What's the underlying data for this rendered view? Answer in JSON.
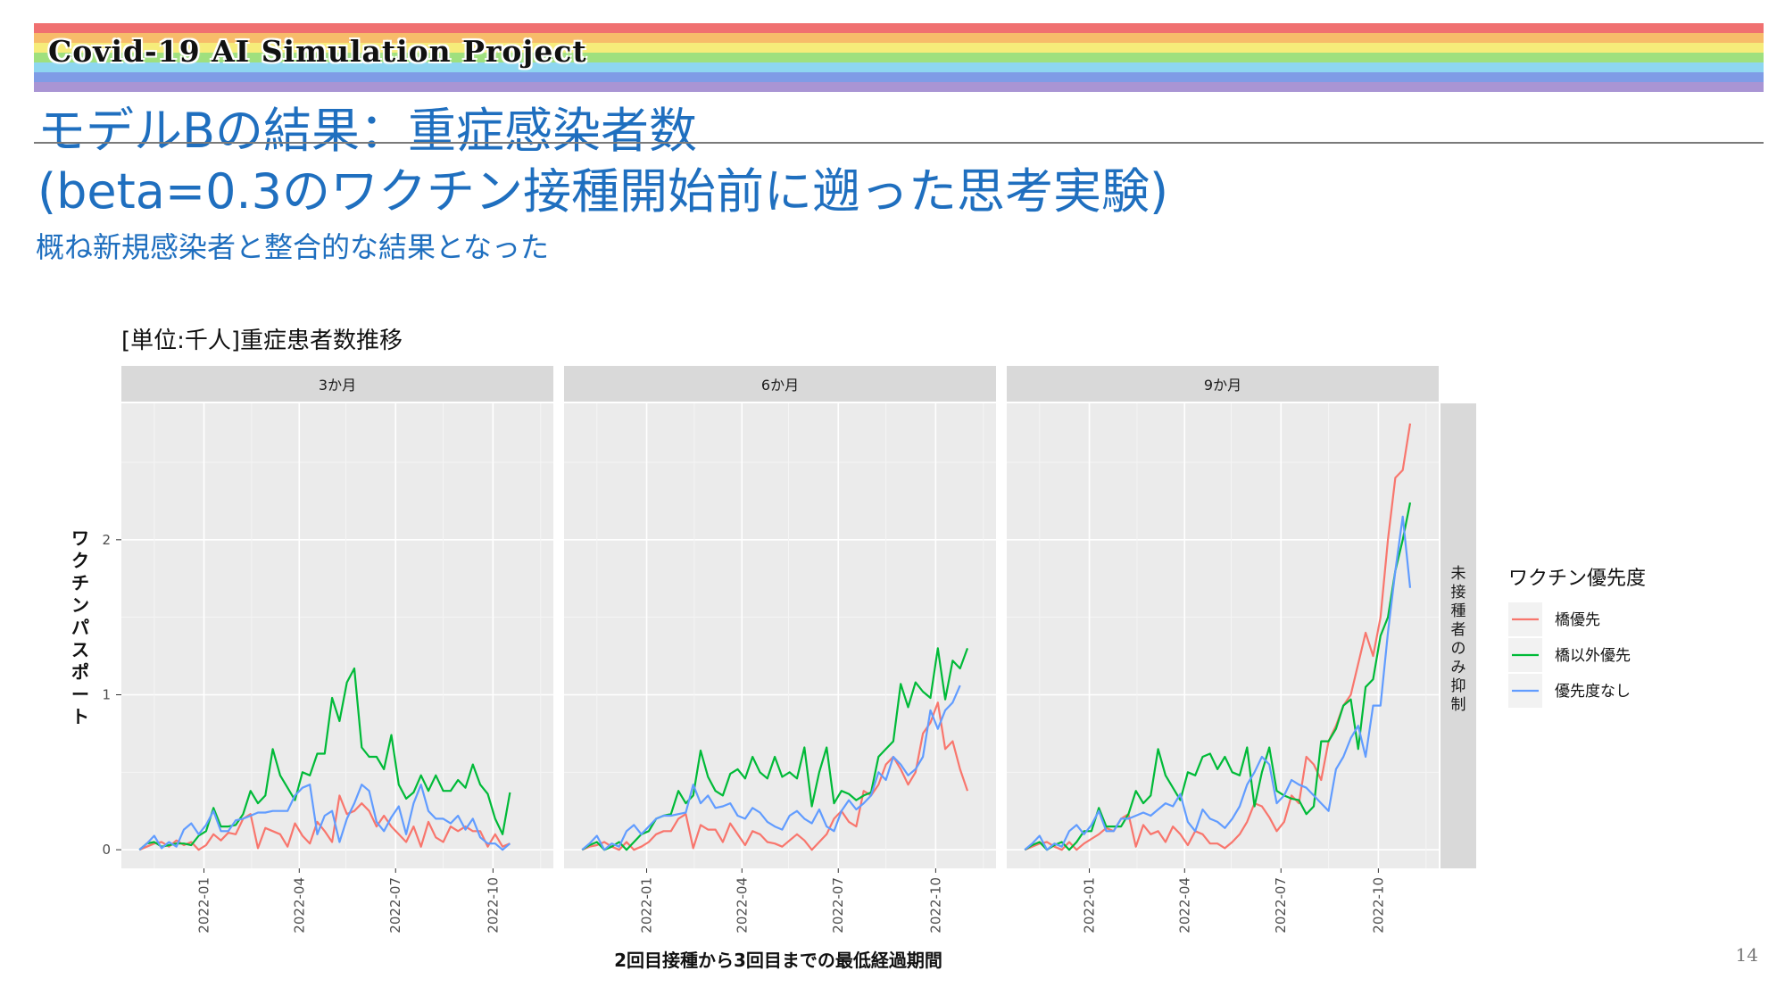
{
  "header": {
    "banner": "Covid-19 AI Simulation Project",
    "rainbow": [
      "#f07070",
      "#f7bc6a",
      "#f6ec7a",
      "#9fe07e",
      "#8ed6f0",
      "#7f9ce6",
      "#a995d4"
    ]
  },
  "title": {
    "line1": "モデルBの結果：重症感染者数",
    "line2": "(beta=0.3のワクチン接種開始前に遡った思考実験)"
  },
  "subtitle": "概ね新規感染者と整合的な結果となった",
  "page_number": "14",
  "chart_data": {
    "type": "line",
    "title": "[単位:千人]重症患者数推移",
    "xlabel": "2回目接種から3回目までの最低経過期間",
    "ylabel": "ワクチンパスポート",
    "row_strip": "未接種者のみ抑制",
    "facets": [
      "3か月",
      "6か月",
      "9か月"
    ],
    "x_start": "2021-11-01",
    "x_step_weeks": 1,
    "xlim": [
      "2021-10-15",
      "2022-11-27"
    ],
    "ylim": [
      -0.12,
      2.88
    ],
    "x_ticks": [
      "2022-01",
      "2022-04",
      "2022-07",
      "2022-10"
    ],
    "y_ticks": [
      0,
      1,
      2
    ],
    "grid": true,
    "legend": {
      "title": "ワクチン優先度",
      "placement": "right",
      "items": [
        {
          "name": "橋優先",
          "color": "#f8766d"
        },
        {
          "name": "橋以外優先",
          "color": "#00ba38"
        },
        {
          "name": "優先度なし",
          "color": "#619cff"
        }
      ]
    },
    "panels": [
      {
        "facet": "3か月",
        "series": [
          {
            "name": "橋優先",
            "values": [
              0,
              0.02,
              0.04,
              0.05,
              0.02,
              0.06,
              0.03,
              0.05,
              0,
              0.03,
              0.1,
              0.06,
              0.11,
              0.1,
              0.2,
              0.23,
              0.01,
              0.14,
              0.12,
              0.1,
              0.02,
              0.17,
              0.09,
              0.04,
              0.18,
              0.12,
              0.05,
              0.35,
              0.23,
              0.25,
              0.3,
              0.25,
              0.15,
              0.22,
              0.15,
              0.1,
              0.05,
              0.15,
              0.02,
              0.18,
              0.08,
              0.05,
              0.15,
              0.12,
              0.15,
              0.12,
              0.12,
              0.02,
              0.1,
              0.02,
              0.04
            ]
          },
          {
            "name": "橋以外優先",
            "values": [
              0,
              0.04,
              0.05,
              0.02,
              0.03,
              0.04,
              0.04,
              0.03,
              0.09,
              0.12,
              0.27,
              0.15,
              0.15,
              0.16,
              0.23,
              0.38,
              0.3,
              0.35,
              0.65,
              0.48,
              0.4,
              0.32,
              0.5,
              0.48,
              0.62,
              0.62,
              0.98,
              0.83,
              1.08,
              1.17,
              0.66,
              0.6,
              0.6,
              0.52,
              0.74,
              0.42,
              0.33,
              0.37,
              0.48,
              0.38,
              0.48,
              0.38,
              0.38,
              0.45,
              0.4,
              0.55,
              0.42,
              0.36,
              0.2,
              0.1,
              0.37
            ]
          },
          {
            "name": "優先度なし",
            "values": [
              0,
              0.04,
              0.09,
              0.01,
              0.05,
              0.02,
              0.13,
              0.17,
              0.1,
              0.16,
              0.25,
              0.12,
              0.12,
              0.19,
              0.2,
              0.22,
              0.24,
              0.24,
              0.25,
              0.25,
              0.25,
              0.35,
              0.4,
              0.42,
              0.1,
              0.22,
              0.25,
              0.05,
              0.2,
              0.3,
              0.42,
              0.38,
              0.18,
              0.12,
              0.21,
              0.28,
              0.1,
              0.3,
              0.42,
              0.25,
              0.2,
              0.2,
              0.17,
              0.22,
              0.13,
              0.2,
              0.08,
              0.04,
              0.04,
              0,
              0.04
            ]
          }
        ]
      },
      {
        "facet": "6か月",
        "series": [
          {
            "name": "橋優先",
            "values": [
              0,
              0.02,
              0.03,
              0.05,
              0.02,
              0,
              0.05,
              0,
              0.02,
              0.05,
              0.1,
              0.12,
              0.12,
              0.2,
              0.23,
              0.01,
              0.16,
              0.13,
              0.13,
              0.05,
              0.17,
              0.1,
              0.03,
              0.12,
              0.1,
              0.05,
              0.04,
              0.02,
              0.06,
              0.1,
              0.06,
              0,
              0.05,
              0.1,
              0.2,
              0.25,
              0.18,
              0.15,
              0.38,
              0.35,
              0.42,
              0.55,
              0.6,
              0.52,
              0.42,
              0.5,
              0.75,
              0.82,
              0.95,
              0.65,
              0.7,
              0.52,
              0.38
            ]
          },
          {
            "name": "橋以外優先",
            "values": [
              0,
              0.03,
              0.05,
              0,
              0.02,
              0.05,
              0,
              0.05,
              0.1,
              0.12,
              0.2,
              0.22,
              0.23,
              0.38,
              0.3,
              0.35,
              0.64,
              0.47,
              0.38,
              0.35,
              0.49,
              0.52,
              0.46,
              0.6,
              0.5,
              0.46,
              0.6,
              0.47,
              0.5,
              0.46,
              0.66,
              0.28,
              0.5,
              0.66,
              0.3,
              0.38,
              0.36,
              0.32,
              0.35,
              0.37,
              0.6,
              0.65,
              0.7,
              1.07,
              0.92,
              1.08,
              1.02,
              0.98,
              1.3,
              0.97,
              1.22,
              1.17,
              1.3
            ]
          },
          {
            "name": "優先度なし",
            "values": [
              0,
              0.04,
              0.09,
              0,
              0.04,
              0.02,
              0.12,
              0.16,
              0.1,
              0.15,
              0.2,
              0.22,
              0.22,
              0.23,
              0.24,
              0.42,
              0.3,
              0.35,
              0.27,
              0.28,
              0.3,
              0.22,
              0.2,
              0.27,
              0.24,
              0.18,
              0.15,
              0.13,
              0.22,
              0.25,
              0.2,
              0.17,
              0.26,
              0.15,
              0.12,
              0.25,
              0.32,
              0.26,
              0.3,
              0.35,
              0.5,
              0.45,
              0.6,
              0.55,
              0.48,
              0.52,
              0.6,
              0.9,
              0.78,
              0.9,
              0.95,
              1.06
            ]
          }
        ]
      },
      {
        "facet": "9か月",
        "series": [
          {
            "name": "橋優先",
            "values": [
              0,
              0.02,
              0.04,
              0.05,
              0.02,
              0,
              0.05,
              0,
              0.04,
              0.07,
              0.1,
              0.14,
              0.12,
              0.2,
              0.23,
              0.02,
              0.16,
              0.1,
              0.12,
              0.05,
              0.15,
              0.1,
              0.03,
              0.12,
              0.1,
              0.04,
              0.04,
              0.01,
              0.05,
              0.1,
              0.18,
              0.3,
              0.28,
              0.21,
              0.12,
              0.18,
              0.35,
              0.3,
              0.6,
              0.55,
              0.45,
              0.7,
              0.8,
              0.93,
              1.0,
              1.2,
              1.4,
              1.25,
              1.5,
              2.0,
              2.4,
              2.45,
              2.75
            ]
          },
          {
            "name": "橋以外優先",
            "values": [
              0,
              0.03,
              0.05,
              0,
              0.03,
              0.05,
              0,
              0.05,
              0.12,
              0.12,
              0.27,
              0.15,
              0.15,
              0.15,
              0.23,
              0.38,
              0.3,
              0.35,
              0.65,
              0.48,
              0.4,
              0.32,
              0.5,
              0.48,
              0.6,
              0.62,
              0.52,
              0.6,
              0.5,
              0.48,
              0.66,
              0.28,
              0.5,
              0.66,
              0.38,
              0.35,
              0.33,
              0.32,
              0.23,
              0.28,
              0.7,
              0.7,
              0.78,
              0.93,
              0.97,
              0.65,
              1.05,
              1.1,
              1.38,
              1.5,
              1.8,
              2.0,
              2.24
            ]
          },
          {
            "name": "優先度なし",
            "values": [
              0,
              0.04,
              0.09,
              0,
              0.04,
              0.02,
              0.12,
              0.16,
              0.1,
              0.16,
              0.25,
              0.12,
              0.12,
              0.2,
              0.2,
              0.22,
              0.24,
              0.22,
              0.26,
              0.3,
              0.28,
              0.36,
              0.18,
              0.12,
              0.26,
              0.2,
              0.18,
              0.14,
              0.2,
              0.28,
              0.42,
              0.5,
              0.6,
              0.55,
              0.3,
              0.35,
              0.45,
              0.42,
              0.4,
              0.35,
              0.3,
              0.25,
              0.52,
              0.6,
              0.72,
              0.8,
              0.6,
              0.93,
              0.93,
              1.4,
              1.8,
              2.15,
              1.69
            ]
          }
        ]
      }
    ]
  }
}
